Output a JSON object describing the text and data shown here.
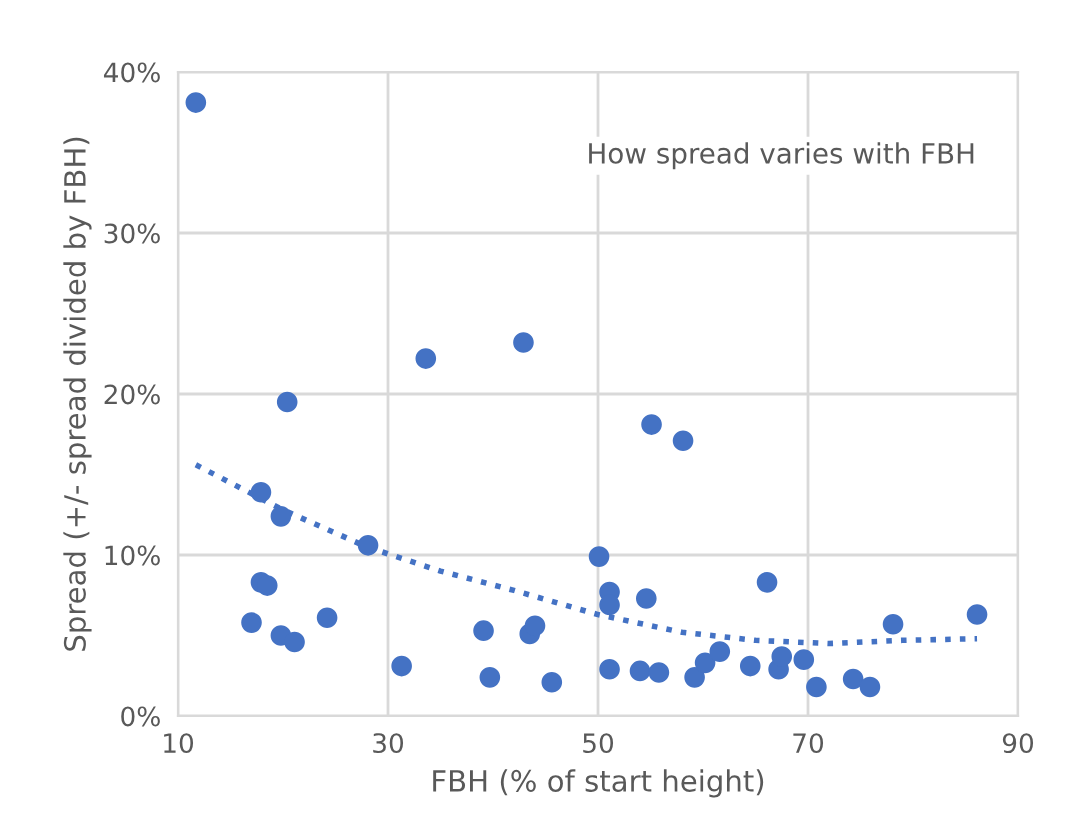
{
  "chart_data": {
    "type": "scatter",
    "xlabel": "FBH (% of start height)",
    "ylabel": "Spread (+/- spread divided by FBH)",
    "annotations": [
      "How spread varies with FBH"
    ],
    "xlim": [
      10,
      90
    ],
    "xticks": [
      10,
      30,
      50,
      70,
      90
    ],
    "ylim": [
      0,
      40
    ],
    "yticks": [
      {
        "value": 0,
        "label": "0%"
      },
      {
        "value": 10,
        "label": "10%"
      },
      {
        "value": 20,
        "label": "20%"
      },
      {
        "value": 30,
        "label": "30%"
      },
      {
        "value": 40,
        "label": "40%"
      }
    ],
    "grid": true,
    "series": [
      {
        "marker": "circle",
        "color": "#4472c4",
        "x": [
          11.7,
          20.4,
          33.6,
          42.9,
          17.9,
          19.8,
          28.1,
          17.9,
          18.5,
          17.0,
          19.8,
          21.1,
          24.2,
          31.3,
          39.1,
          39.7,
          43.5,
          44.0,
          45.6,
          50.1,
          51.1,
          51.1,
          54.6,
          55.1,
          58.1,
          51.1,
          54.0,
          55.8,
          59.2,
          60.2,
          61.6,
          64.5,
          66.1,
          67.2,
          67.5,
          69.6,
          70.8,
          74.3,
          75.9,
          78.1,
          86.1
        ],
        "values": [
          38.1,
          19.5,
          22.2,
          23.2,
          13.9,
          12.4,
          10.6,
          8.3,
          8.1,
          5.8,
          5.0,
          4.6,
          6.1,
          3.1,
          5.3,
          2.4,
          5.1,
          5.6,
          2.1,
          9.9,
          7.7,
          6.9,
          7.3,
          18.1,
          17.1,
          2.9,
          2.8,
          2.7,
          2.4,
          3.3,
          4.0,
          3.1,
          8.3,
          2.9,
          3.7,
          3.5,
          1.8,
          2.3,
          1.8,
          5.7,
          6.3
        ]
      },
      {
        "type": "line",
        "color": "#4472c4",
        "line_style": "dotted",
        "marker": "none",
        "x": [
          11.7,
          20,
          28,
          35,
          42,
          50,
          58,
          65,
          72,
          79,
          86.1
        ],
        "values": [
          15.6,
          12.8,
          10.5,
          9.0,
          7.8,
          6.3,
          5.2,
          4.7,
          4.5,
          4.7,
          4.8
        ]
      }
    ]
  }
}
